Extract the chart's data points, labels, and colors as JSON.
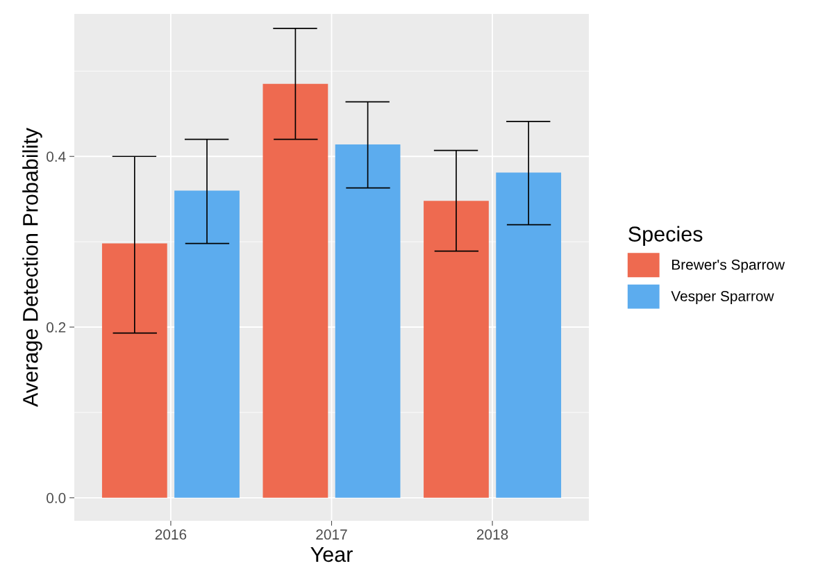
{
  "chart_data": {
    "type": "bar",
    "xlabel": "Year",
    "ylabel": "Average Detection Probability",
    "legend_title": "Species",
    "categories": [
      "2016",
      "2017",
      "2018"
    ],
    "series": [
      {
        "name": "Brewer's Sparrow",
        "color": "#ee6a50",
        "values": [
          0.298,
          0.485,
          0.348
        ],
        "errors": [
          [
            0.193,
            0.4
          ],
          [
            0.42,
            0.55
          ],
          [
            0.289,
            0.407
          ]
        ]
      },
      {
        "name": "Vesper Sparrow",
        "color": "#5cacee",
        "values": [
          0.36,
          0.414,
          0.381
        ],
        "errors": [
          [
            0.298,
            0.42
          ],
          [
            0.363,
            0.464
          ],
          [
            0.32,
            0.441
          ]
        ]
      }
    ],
    "ylim": [
      -0.027,
      0.567
    ],
    "yticks": [
      {
        "value": 0,
        "label": "0.0"
      },
      {
        "value": 0.2,
        "label": "0.2"
      },
      {
        "value": 0.4,
        "label": "0.4"
      }
    ],
    "grid": true,
    "legend": "right"
  }
}
